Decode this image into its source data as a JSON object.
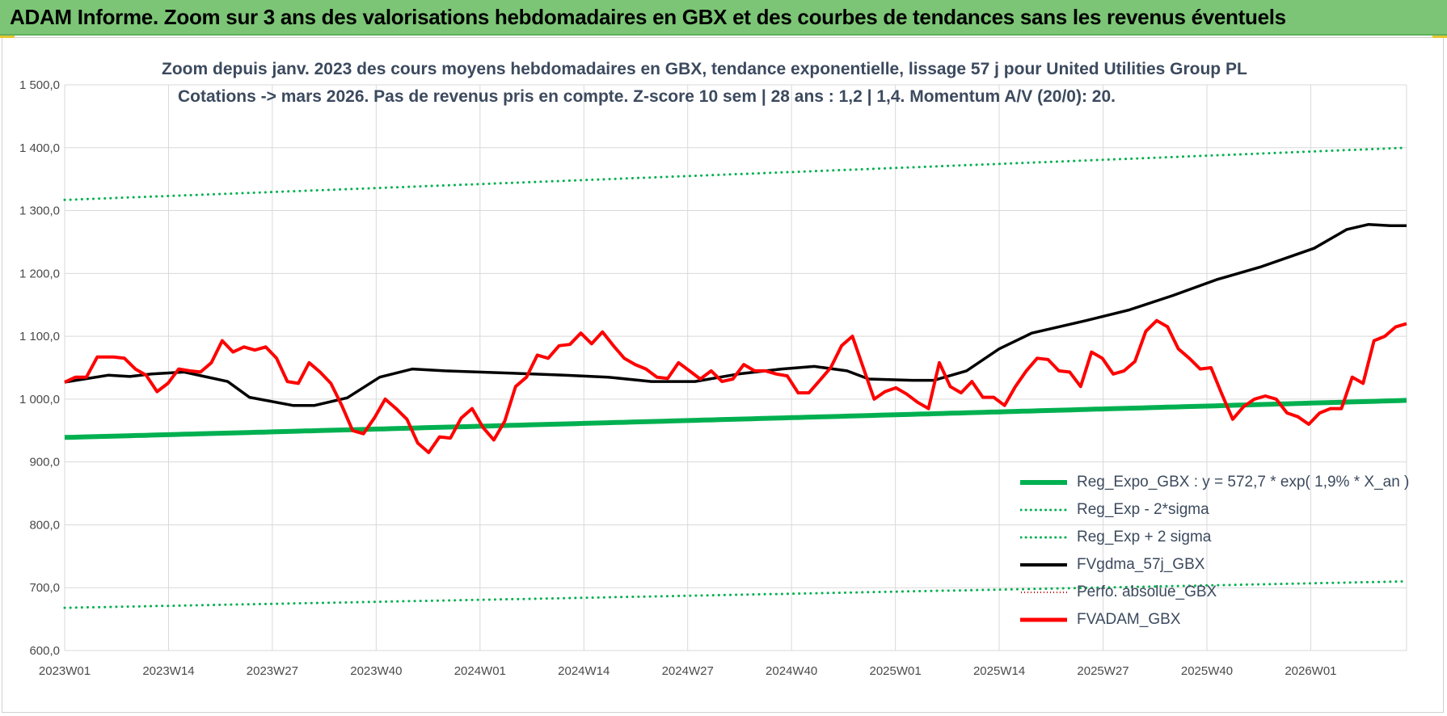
{
  "banner": {
    "title": "ADAM Informe. Zoom sur 3 ans des valorisations hebdomadaires en GBX et des courbes de tendances sans les revenus éventuels",
    "color": "#7cc576"
  },
  "chart_data": {
    "type": "line",
    "title_line1": "Zoom depuis janv. 2023 des cours moyens hebdomadaires en GBX, tendance exponentielle, lissage 57 j pour United Utilities Group PL",
    "title_line2": "Cotations -> mars 2026. Pas de revenus pris en compte. Z-score 10 sem | 28 ans : 1,2 | 1,4. Momentum A/V (20/0): 20.",
    "ylim": [
      600,
      1500
    ],
    "yticks": [
      "600,0",
      "700,0",
      "800,0",
      "900,0",
      "1 000,0",
      "1 100,0",
      "1 200,0",
      "1 300,0",
      "1 400,0",
      "1 500,0"
    ],
    "xticks": [
      "2023W01",
      "2023W14",
      "2023W27",
      "2023W40",
      "2024W01",
      "2024W14",
      "2024W27",
      "2024W40",
      "2025W01",
      "2025W14",
      "2025W27",
      "2025W40",
      "2026W01"
    ],
    "n_weeks": 168,
    "grid": true,
    "legend_position": "bottom-right",
    "series": [
      {
        "name": "Reg_Expo_GBX : y = 572,7 * exp( 1,9% *  X_an )",
        "color": "#00b050",
        "style": "solid-thick",
        "start": 939,
        "end": 998
      },
      {
        "name": "Reg_Exp - 2*sigma",
        "color": "#00b050",
        "style": "dotted",
        "start": 668,
        "end": 710
      },
      {
        "name": "Reg_Exp + 2 sigma",
        "color": "#00b050",
        "style": "dotted",
        "start": 1317,
        "end": 1400
      },
      {
        "name": "FVgdma_57j_GBX",
        "color": "#000000",
        "style": "solid",
        "points": [
          [
            0,
            1027
          ],
          [
            8,
            1038
          ],
          [
            12,
            1036
          ],
          [
            16,
            1040
          ],
          [
            22,
            1043
          ],
          [
            30,
            1028
          ],
          [
            34,
            1003
          ],
          [
            42,
            990
          ],
          [
            46,
            990
          ],
          [
            52,
            1002
          ],
          [
            58,
            1035
          ],
          [
            64,
            1048
          ],
          [
            70,
            1045
          ],
          [
            80,
            1042
          ],
          [
            92,
            1038
          ],
          [
            100,
            1035
          ],
          [
            108,
            1028
          ],
          [
            116,
            1028
          ],
          [
            124,
            1040
          ],
          [
            132,
            1048
          ],
          [
            138,
            1052
          ],
          [
            144,
            1045
          ],
          [
            148,
            1032
          ],
          [
            156,
            1030
          ],
          [
            160,
            1030
          ],
          [
            166,
            1045
          ],
          [
            172,
            1080
          ],
          [
            178,
            1105
          ],
          [
            188,
            1125
          ],
          [
            196,
            1142
          ],
          [
            204,
            1165
          ],
          [
            212,
            1190
          ],
          [
            220,
            1210
          ],
          [
            230,
            1240
          ],
          [
            236,
            1270
          ],
          [
            240,
            1278
          ],
          [
            244,
            1276
          ],
          [
            247,
            1276
          ]
        ]
      },
      {
        "name": "Perfo. absolue_GBX",
        "color": "#c00000",
        "style": "dotted-thin"
      },
      {
        "name": "FVADAM_GBX",
        "color": "#ff0000",
        "style": "solid-thick",
        "points": [
          [
            0,
            1027
          ],
          [
            2,
            1035
          ],
          [
            4,
            1035
          ],
          [
            6,
            1067
          ],
          [
            9,
            1067
          ],
          [
            11,
            1065
          ],
          [
            13,
            1048
          ],
          [
            15,
            1038
          ],
          [
            17,
            1012
          ],
          [
            19,
            1025
          ],
          [
            21,
            1048
          ],
          [
            23,
            1045
          ],
          [
            25,
            1043
          ],
          [
            27,
            1058
          ],
          [
            29,
            1093
          ],
          [
            31,
            1075
          ],
          [
            33,
            1083
          ],
          [
            35,
            1078
          ],
          [
            37,
            1083
          ],
          [
            39,
            1065
          ],
          [
            41,
            1028
          ],
          [
            43,
            1025
          ],
          [
            45,
            1058
          ],
          [
            47,
            1043
          ],
          [
            49,
            1025
          ],
          [
            51,
            990
          ],
          [
            53,
            950
          ],
          [
            55,
            945
          ],
          [
            57,
            970
          ],
          [
            59,
            1000
          ],
          [
            61,
            985
          ],
          [
            63,
            968
          ],
          [
            65,
            930
          ],
          [
            67,
            915
          ],
          [
            69,
            940
          ],
          [
            71,
            938
          ],
          [
            73,
            970
          ],
          [
            75,
            985
          ],
          [
            77,
            955
          ],
          [
            79,
            935
          ],
          [
            81,
            965
          ],
          [
            83,
            1020
          ],
          [
            85,
            1035
          ],
          [
            87,
            1070
          ],
          [
            89,
            1065
          ],
          [
            91,
            1085
          ],
          [
            93,
            1087
          ],
          [
            95,
            1105
          ],
          [
            97,
            1088
          ],
          [
            99,
            1107
          ],
          [
            101,
            1085
          ],
          [
            103,
            1065
          ],
          [
            105,
            1055
          ],
          [
            107,
            1048
          ],
          [
            109,
            1035
          ],
          [
            111,
            1033
          ],
          [
            113,
            1058
          ],
          [
            115,
            1045
          ],
          [
            117,
            1032
          ],
          [
            119,
            1045
          ],
          [
            121,
            1028
          ],
          [
            123,
            1032
          ],
          [
            125,
            1055
          ],
          [
            127,
            1045
          ],
          [
            129,
            1045
          ],
          [
            131,
            1040
          ],
          [
            133,
            1037
          ],
          [
            135,
            1010
          ],
          [
            137,
            1010
          ],
          [
            139,
            1030
          ],
          [
            141,
            1050
          ],
          [
            143,
            1085
          ],
          [
            145,
            1100
          ],
          [
            147,
            1050
          ],
          [
            149,
            1000
          ],
          [
            151,
            1012
          ],
          [
            153,
            1018
          ],
          [
            155,
            1008
          ],
          [
            157,
            995
          ],
          [
            159,
            985
          ],
          [
            161,
            1058
          ],
          [
            163,
            1020
          ],
          [
            165,
            1010
          ],
          [
            167,
            1028
          ],
          [
            169,
            1003
          ],
          [
            171,
            1003
          ],
          [
            173,
            990
          ],
          [
            175,
            1020
          ],
          [
            177,
            1045
          ],
          [
            179,
            1065
          ],
          [
            181,
            1063
          ],
          [
            183,
            1045
          ],
          [
            185,
            1043
          ],
          [
            187,
            1020
          ],
          [
            189,
            1075
          ],
          [
            191,
            1065
          ],
          [
            193,
            1040
          ],
          [
            195,
            1045
          ],
          [
            197,
            1060
          ],
          [
            199,
            1108
          ],
          [
            201,
            1125
          ],
          [
            203,
            1115
          ],
          [
            205,
            1080
          ],
          [
            207,
            1065
          ],
          [
            209,
            1048
          ],
          [
            211,
            1050
          ],
          [
            213,
            1008
          ],
          [
            215,
            968
          ],
          [
            217,
            988
          ],
          [
            219,
            1000
          ],
          [
            221,
            1005
          ],
          [
            223,
            1000
          ],
          [
            225,
            978
          ],
          [
            227,
            972
          ],
          [
            229,
            960
          ],
          [
            231,
            978
          ],
          [
            233,
            985
          ],
          [
            235,
            985
          ],
          [
            237,
            1035
          ],
          [
            239,
            1025
          ],
          [
            241,
            1093
          ],
          [
            243,
            1100
          ],
          [
            245,
            1115
          ],
          [
            247,
            1120
          ]
        ]
      }
    ]
  }
}
